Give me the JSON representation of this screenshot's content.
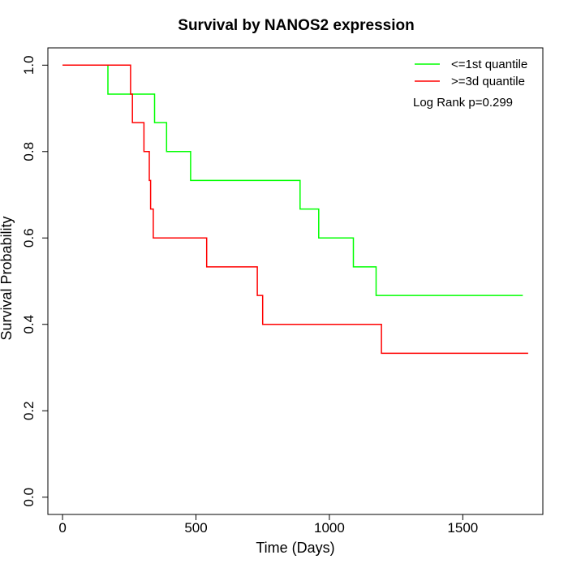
{
  "chart_data": {
    "type": "line",
    "title": "Survival by NANOS2 expression",
    "xlabel": "Time (Days)",
    "ylabel": "Survival Probability",
    "xlim": [
      -55,
      1800
    ],
    "ylim": [
      -0.04,
      1.04
    ],
    "xticks": [
      0,
      500,
      1000,
      1500
    ],
    "yticks": [
      0.0,
      0.2,
      0.4,
      0.6,
      0.8,
      1.0
    ],
    "xtick_labels": [
      "0",
      "500",
      "1000",
      "1500"
    ],
    "ytick_labels": [
      "0.0",
      "0.2",
      "0.4",
      "0.6",
      "0.8",
      "1.0"
    ],
    "grid": false,
    "legend_position": "top-right",
    "annotation": "Log Rank p=0.299",
    "series": [
      {
        "name": "<=1st quantile",
        "color": "#00ff00",
        "step": true,
        "points": [
          [
            0,
            1.0
          ],
          [
            170,
            1.0
          ],
          [
            170,
            0.933
          ],
          [
            345,
            0.933
          ],
          [
            345,
            0.867
          ],
          [
            390,
            0.867
          ],
          [
            390,
            0.8
          ],
          [
            480,
            0.8
          ],
          [
            480,
            0.733
          ],
          [
            890,
            0.733
          ],
          [
            890,
            0.667
          ],
          [
            960,
            0.667
          ],
          [
            960,
            0.6
          ],
          [
            1090,
            0.6
          ],
          [
            1090,
            0.533
          ],
          [
            1175,
            0.533
          ],
          [
            1175,
            0.467
          ],
          [
            1725,
            0.467
          ]
        ]
      },
      {
        "name": ">=3d quantile",
        "color": "#ff0000",
        "step": true,
        "points": [
          [
            0,
            1.0
          ],
          [
            255,
            1.0
          ],
          [
            255,
            0.933
          ],
          [
            262,
            0.933
          ],
          [
            262,
            0.867
          ],
          [
            305,
            0.867
          ],
          [
            305,
            0.8
          ],
          [
            325,
            0.8
          ],
          [
            325,
            0.733
          ],
          [
            330,
            0.733
          ],
          [
            330,
            0.667
          ],
          [
            340,
            0.667
          ],
          [
            340,
            0.6
          ],
          [
            540,
            0.6
          ],
          [
            540,
            0.533
          ],
          [
            730,
            0.533
          ],
          [
            730,
            0.467
          ],
          [
            750,
            0.467
          ],
          [
            750,
            0.4
          ],
          [
            1195,
            0.4
          ],
          [
            1195,
            0.333
          ],
          [
            1745,
            0.333
          ]
        ]
      }
    ]
  }
}
